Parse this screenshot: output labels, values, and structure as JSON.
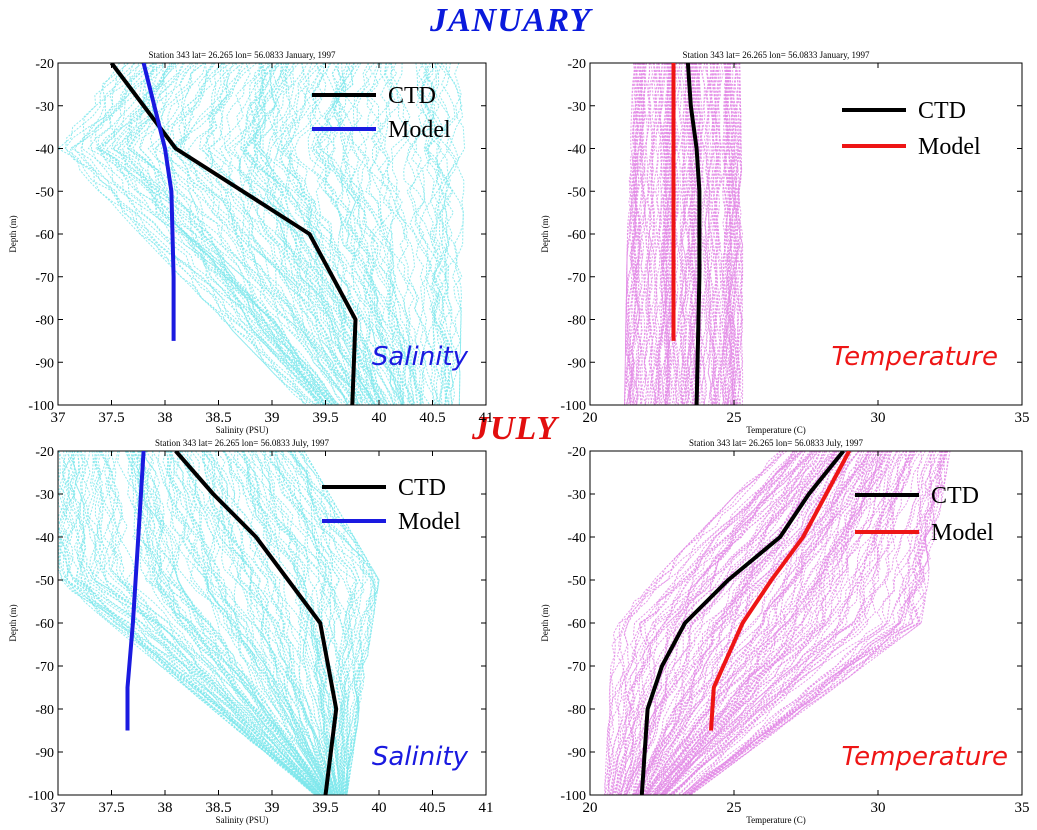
{
  "headings": {
    "january": "JANUARY",
    "july": "JULY"
  },
  "colors": {
    "salinity_cloud": "#7fe8ec",
    "temperature_cloud": "#e38be6",
    "ctd": "#000000",
    "salinity_model": "#1a1ae0",
    "temperature_model": "#ee1515",
    "salinity_annotation": "#1a1ae0",
    "temperature_annotation": "#ee1515"
  },
  "chart_data": [
    {
      "type": "line",
      "id": "jan-salinity",
      "title": "Station 343  lat= 26.265  lon= 56.0833   January, 1997",
      "xlabel": "Salinity (PSU)",
      "ylabel": "Depth (m)",
      "xlim": [
        37,
        41
      ],
      "ylim": [
        -100,
        -20
      ],
      "xticks": [
        "37",
        "37.5",
        "38",
        "38.5",
        "39",
        "39.5",
        "40",
        "40.5",
        "41"
      ],
      "yticks": [
        "-20",
        "-30",
        "-40",
        "-50",
        "-60",
        "-70",
        "-80",
        "-90",
        "-100"
      ],
      "annotation": "Salinity",
      "legend_position": "top-right",
      "cloud_color": "salinity_cloud",
      "cloud": {
        "top": [
          37.55,
          40.75
        ],
        "mid": [
          37.0,
          40.8
        ],
        "mid_depth": -40,
        "bottom": [
          39.3,
          40.75
        ]
      },
      "series": [
        {
          "name": "CTD",
          "color_key": "ctd",
          "x": [
            37.5,
            38.1,
            39.35,
            39.78,
            39.75
          ],
          "y": [
            -20,
            -40,
            -60,
            -80,
            -100
          ]
        },
        {
          "name": "Model",
          "color_key": "salinity_model",
          "x": [
            37.8,
            37.9,
            38.0,
            38.06,
            38.08,
            38.08
          ],
          "y": [
            -20,
            -30,
            -40,
            -50,
            -70,
            -85
          ]
        }
      ]
    },
    {
      "type": "line",
      "id": "jan-temperature",
      "title": "Station 343  lat= 26.265  lon= 56.0833   January, 1997",
      "xlabel": "Temperature (C)",
      "ylabel": "Depth (m)",
      "xlim": [
        20,
        35
      ],
      "ylim": [
        -100,
        -20
      ],
      "xticks": [
        "20",
        "25",
        "30",
        "35"
      ],
      "yticks": [
        "-20",
        "-30",
        "-40",
        "-50",
        "-60",
        "-70",
        "-80",
        "-90",
        "-100"
      ],
      "annotation": "Temperature",
      "legend_position": "top-right",
      "cloud_color": "temperature_cloud",
      "cloud": {
        "top": [
          21.5,
          25.2
        ],
        "mid": [
          21.3,
          25.3
        ],
        "mid_depth": -60,
        "bottom": [
          21.2,
          25.3
        ]
      },
      "series": [
        {
          "name": "CTD",
          "color_key": "ctd",
          "x": [
            23.4,
            23.5,
            23.7,
            23.8,
            23.8,
            23.7
          ],
          "y": [
            -20,
            -30,
            -40,
            -50,
            -70,
            -100
          ]
        },
        {
          "name": "Model",
          "color_key": "temperature_model",
          "x": [
            22.9,
            22.9,
            22.9
          ],
          "y": [
            -20,
            -50,
            -85
          ]
        }
      ]
    },
    {
      "type": "line",
      "id": "jul-salinity",
      "title": "Station 343  lat= 26.265  lon= 56.0833   July, 1997",
      "xlabel": "Salinity (PSU)",
      "ylabel": "Depth (m)",
      "xlim": [
        37,
        41
      ],
      "ylim": [
        -100,
        -20
      ],
      "xticks": [
        "37",
        "37.5",
        "38",
        "38.5",
        "39",
        "39.5",
        "40",
        "40.5",
        "41"
      ],
      "yticks": [
        "-20",
        "-30",
        "-40",
        "-50",
        "-60",
        "-70",
        "-80",
        "-90",
        "-100"
      ],
      "annotation": "Salinity",
      "legend_position": "top-right",
      "cloud_color": "salinity_cloud",
      "cloud": {
        "top": [
          37.0,
          39.3
        ],
        "mid": [
          37.0,
          40.0
        ],
        "mid_depth": -50,
        "bottom": [
          39.4,
          39.7
        ]
      },
      "series": [
        {
          "name": "CTD",
          "color_key": "ctd",
          "x": [
            38.1,
            38.45,
            38.85,
            39.45,
            39.6,
            39.5
          ],
          "y": [
            -20,
            -30,
            -40,
            -60,
            -80,
            -100
          ]
        },
        {
          "name": "Model",
          "color_key": "salinity_model",
          "x": [
            37.8,
            37.75,
            37.7,
            37.65,
            37.65
          ],
          "y": [
            -20,
            -40,
            -60,
            -75,
            -85
          ]
        }
      ]
    },
    {
      "type": "line",
      "id": "jul-temperature",
      "title": "Station 343  lat= 26.265  lon= 56.0833   July, 1997",
      "xlabel": "Temperature (C)",
      "ylabel": "Depth (m)",
      "xlim": [
        20,
        35
      ],
      "ylim": [
        -100,
        -20
      ],
      "xticks": [
        "20",
        "25",
        "30",
        "35"
      ],
      "yticks": [
        "-20",
        "-30",
        "-40",
        "-50",
        "-60",
        "-70",
        "-80",
        "-90",
        "-100"
      ],
      "annotation": "Temperature",
      "legend_position": "top-right",
      "cloud_color": "temperature_cloud",
      "cloud": {
        "top": [
          26.5,
          32.5
        ],
        "mid": [
          20.8,
          31.5
        ],
        "mid_depth": -60,
        "bottom": [
          20.5,
          23.5
        ]
      },
      "series": [
        {
          "name": "CTD",
          "color_key": "ctd",
          "x": [
            28.8,
            27.6,
            26.6,
            24.8,
            23.3,
            22.5,
            22.0,
            21.8
          ],
          "y": [
            -20,
            -30,
            -40,
            -50,
            -60,
            -70,
            -80,
            -100
          ]
        },
        {
          "name": "Model",
          "color_key": "temperature_model",
          "x": [
            29.0,
            28.2,
            27.4,
            26.3,
            25.3,
            24.3,
            24.2
          ],
          "y": [
            -20,
            -30,
            -40,
            -50,
            -60,
            -75,
            -85
          ]
        }
      ]
    }
  ]
}
